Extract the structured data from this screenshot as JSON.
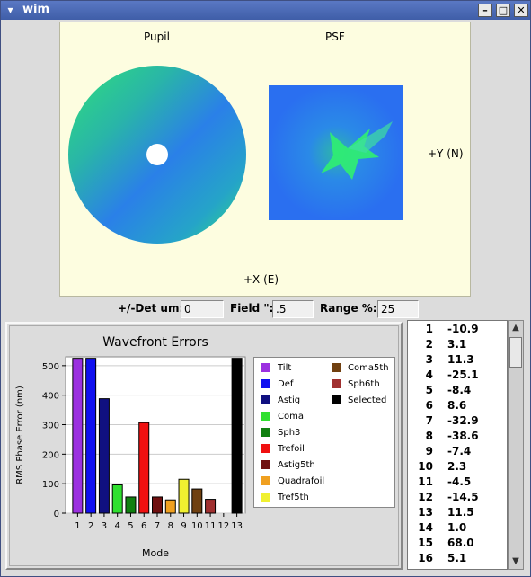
{
  "window": {
    "title": "wim",
    "buttons": {
      "minimize": "–",
      "maximize": "□",
      "close": "✕"
    }
  },
  "top_view": {
    "pupil_label": "Pupil",
    "psf_label": "PSF",
    "y_axis_label": "+Y (N)",
    "x_axis_label": "+X (E)"
  },
  "controls": {
    "det_label": "+/-Det um:",
    "det_value": "0",
    "field_label": "Field \":",
    "field_value": ".5",
    "range_label": "Range %:",
    "range_value": "25"
  },
  "chart_data": {
    "type": "bar",
    "title": "Wavefront Errors",
    "xlabel": "Mode",
    "ylabel": "RMS Phase Error (nm)",
    "ylim": [
      0,
      530
    ],
    "yticks": [
      0,
      100,
      200,
      300,
      400,
      500
    ],
    "categories": [
      "1",
      "2",
      "3",
      "4",
      "5",
      "6",
      "7",
      "8",
      "9",
      "10",
      "11",
      "12",
      "13"
    ],
    "values": [
      525,
      525,
      388,
      96,
      55,
      307,
      55,
      45,
      115,
      82,
      47,
      0,
      525
    ],
    "colors": [
      "#9b30e0",
      "#1010f0",
      "#101080",
      "#30e030",
      "#108010",
      "#f01010",
      "#701010",
      "#f0a020",
      "#f0f030",
      "#704010",
      "#a03030",
      "#ffffff",
      "#000000"
    ],
    "grid": true,
    "legend_position": "right",
    "legend": [
      {
        "name": "Tilt",
        "color": "#9b30e0"
      },
      {
        "name": "Def",
        "color": "#1010f0"
      },
      {
        "name": "Astig",
        "color": "#101080"
      },
      {
        "name": "Coma",
        "color": "#30e030"
      },
      {
        "name": "Sph3",
        "color": "#108010"
      },
      {
        "name": "Trefoil",
        "color": "#f01010"
      },
      {
        "name": "Astig5th",
        "color": "#701010"
      },
      {
        "name": "Quadrafoil",
        "color": "#f0a020"
      },
      {
        "name": "Tref5th",
        "color": "#f0f030"
      },
      {
        "name": "Coma5th",
        "color": "#704010"
      },
      {
        "name": "Sph6th",
        "color": "#a03030"
      },
      {
        "name": "Selected",
        "color": "#000000"
      }
    ]
  },
  "mode_list": [
    {
      "idx": "1",
      "val": "-10.9"
    },
    {
      "idx": "2",
      "val": "3.1"
    },
    {
      "idx": "3",
      "val": "11.3"
    },
    {
      "idx": "4",
      "val": "-25.1"
    },
    {
      "idx": "5",
      "val": "-8.4"
    },
    {
      "idx": "6",
      "val": "8.6"
    },
    {
      "idx": "7",
      "val": "-32.9"
    },
    {
      "idx": "8",
      "val": "-38.6"
    },
    {
      "idx": "9",
      "val": "-7.4"
    },
    {
      "idx": "10",
      "val": "2.3"
    },
    {
      "idx": "11",
      "val": "-4.5"
    },
    {
      "idx": "12",
      "val": "-14.5"
    },
    {
      "idx": "13",
      "val": "11.5"
    },
    {
      "idx": "14",
      "val": "1.0"
    },
    {
      "idx": "15",
      "val": "68.0"
    },
    {
      "idx": "16",
      "val": "5.1"
    }
  ]
}
